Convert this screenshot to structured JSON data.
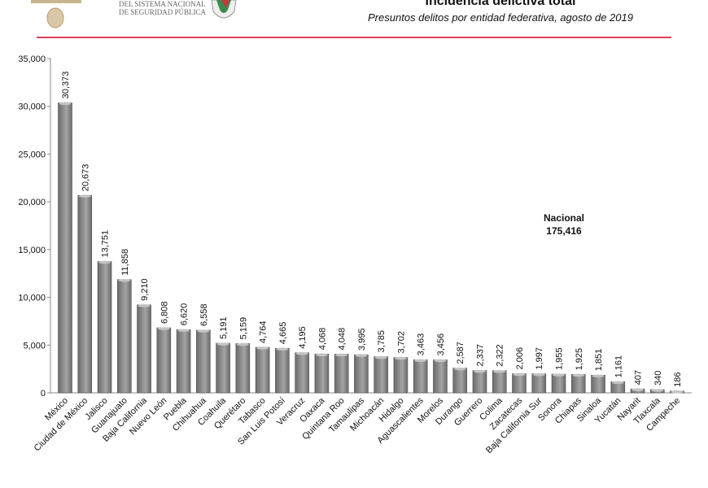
{
  "header": {
    "title": "Incidencia delictiva total",
    "subtitle": "Presuntos delitos por entidad federativa, agosto de 2019",
    "logo_text_line1": "DEL SISTEMA NACIONAL",
    "logo_text_line2": "DE SEGURIDAD PÚBLICA",
    "rule_color": "#e0405a"
  },
  "chart_data": {
    "type": "bar",
    "title": "Incidencia delictiva total",
    "subtitle": "Presuntos delitos por entidad federativa, agosto de 2019",
    "categories": [
      "México",
      "Ciudad de México",
      "Jalisco",
      "Guanajuato",
      "Baja California",
      "Nuevo León",
      "Puebla",
      "Chihuahua",
      "Coahuila",
      "Querétaro",
      "Tabasco",
      "San Luis Potosí",
      "Veracruz",
      "Oaxaca",
      "Quintana Roo",
      "Tamaulipas",
      "Michoacán",
      "Hidalgo",
      "Aguascalientes",
      "Morelos",
      "Durango",
      "Guerrero",
      "Colima",
      "Zacatecas",
      "Baja California Sur",
      "Sonora",
      "Chiapas",
      "Sinaloa",
      "Yucatán",
      "Nayarit",
      "Tlaxcala",
      "Campeche"
    ],
    "values": [
      30373,
      20673,
      13751,
      11858,
      9210,
      6808,
      6620,
      6558,
      5191,
      5159,
      4764,
      4665,
      4195,
      4068,
      4048,
      3995,
      3785,
      3702,
      3463,
      3456,
      2587,
      2337,
      2322,
      2006,
      1997,
      1955,
      1925,
      1851,
      1161,
      407,
      340,
      186
    ],
    "data_labels": [
      "30,373",
      "20,673",
      "13,751",
      "11,858",
      "9,210",
      "6,808",
      "6,620",
      "6,558",
      "5,191",
      "5,159",
      "4,764",
      "4,665",
      "4,195",
      "4,068",
      "4,048",
      "3,995",
      "3,785",
      "3,702",
      "3,463",
      "3,456",
      "2,587",
      "2,337",
      "2,322",
      "2,006",
      "1,997",
      "1,955",
      "1,925",
      "1,851",
      "1,161",
      "407",
      "340",
      "186"
    ],
    "ylim": [
      0,
      35000
    ],
    "yticks": [
      0,
      5000,
      10000,
      15000,
      20000,
      25000,
      30000,
      35000
    ],
    "ytick_labels": [
      "0",
      "5,000",
      "10,000",
      "15,000",
      "20,000",
      "25,000",
      "30,000",
      "35,000"
    ],
    "grid": false,
    "bar_color": "#8c8c8c",
    "annotation": {
      "line1": "Nacional",
      "line2": "175,416"
    }
  }
}
